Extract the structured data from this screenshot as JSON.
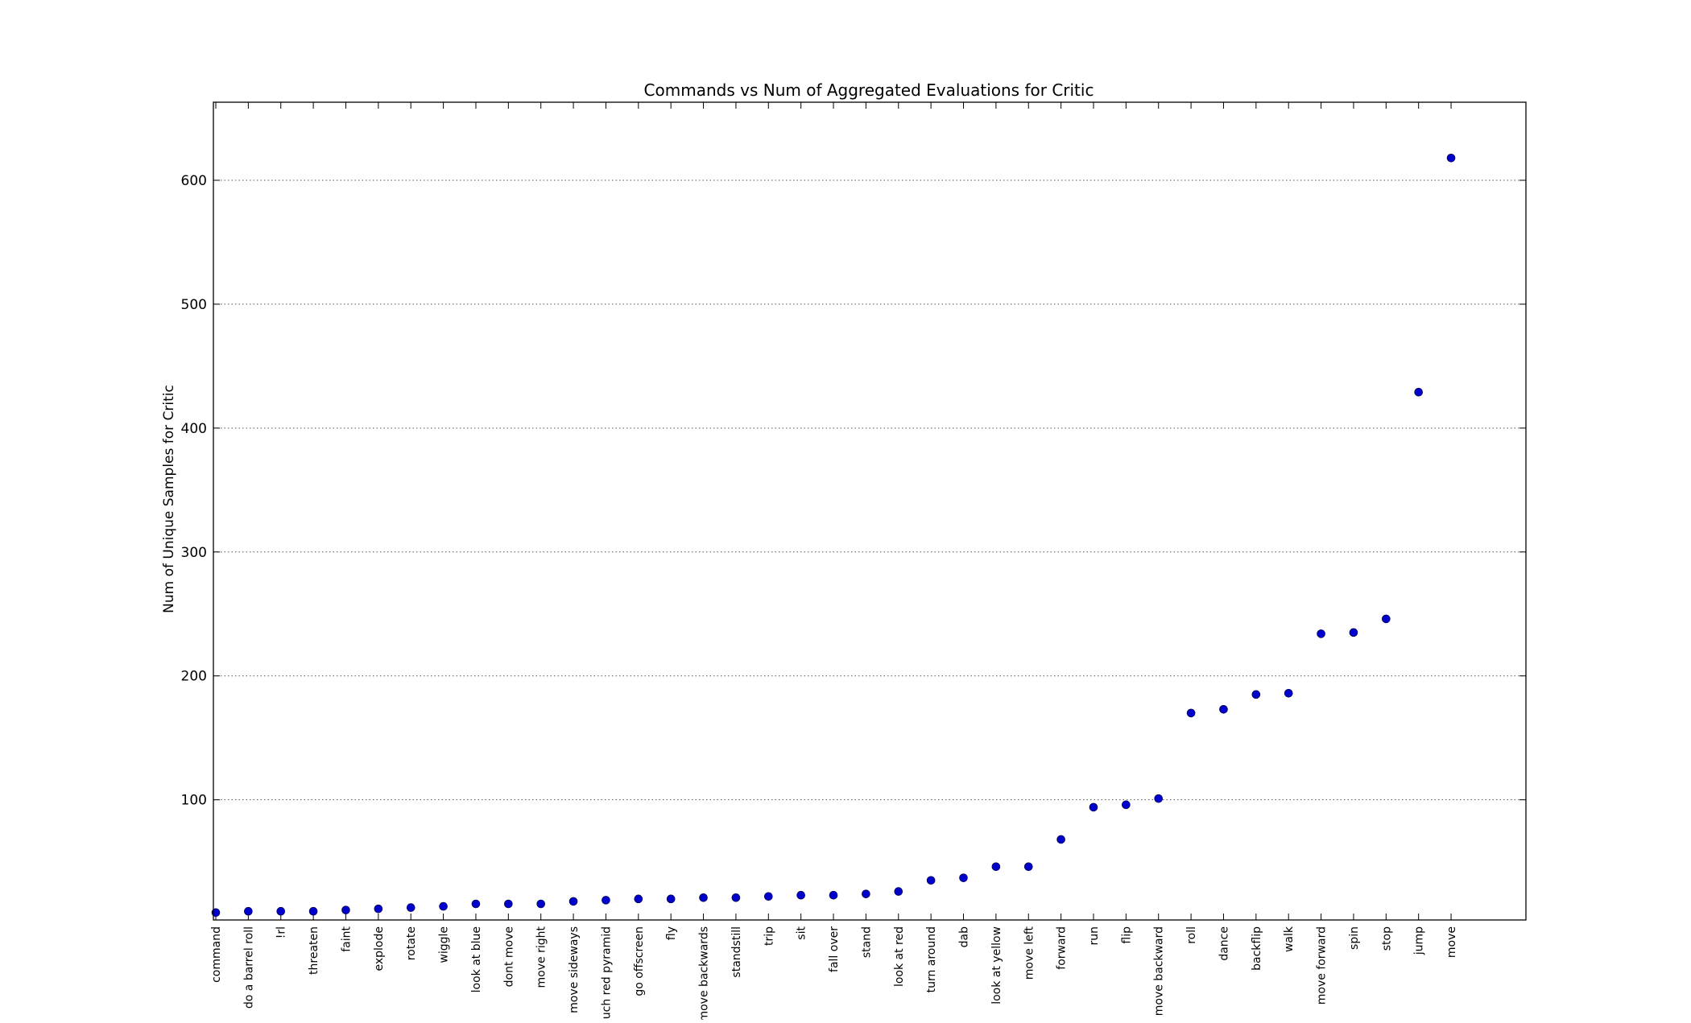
{
  "chart_data": {
    "type": "scatter",
    "title": "Commands vs Num of Aggregated Evaluations for Critic",
    "xlabel": "",
    "ylabel": "Num of Unique Samples for Critic",
    "categories": [
      "command",
      "do a barrel roll",
      "!rl",
      "threaten",
      "faint",
      "explode",
      "rotate",
      "wiggle",
      "look at blue",
      "dont move",
      "move right",
      "move sideways",
      "touch red pyramid",
      "go offscreen",
      "fly",
      "move backwards",
      "standstill",
      "trip",
      "sit",
      "fall over",
      "stand",
      "look at red",
      "turn around",
      "dab",
      "look at yellow",
      "move left",
      "forward",
      "run",
      "flip",
      "move backward",
      "roll",
      "dance",
      "backflip",
      "walk",
      "move forward",
      "spin",
      "stop",
      "jump",
      "move"
    ],
    "values": [
      9,
      10,
      10,
      10,
      11,
      12,
      13,
      14,
      16,
      16,
      16,
      18,
      19,
      20,
      20,
      21,
      21,
      22,
      23,
      23,
      24,
      26,
      35,
      37,
      46,
      46,
      68,
      94,
      96,
      101,
      170,
      173,
      185,
      186,
      234,
      235,
      246,
      429,
      618
    ],
    "yticks": [
      100,
      200,
      300,
      400,
      500,
      600
    ],
    "ylim": [
      3,
      663
    ],
    "grid": "horizontal-dotted",
    "marker_color": "#0000cc"
  }
}
